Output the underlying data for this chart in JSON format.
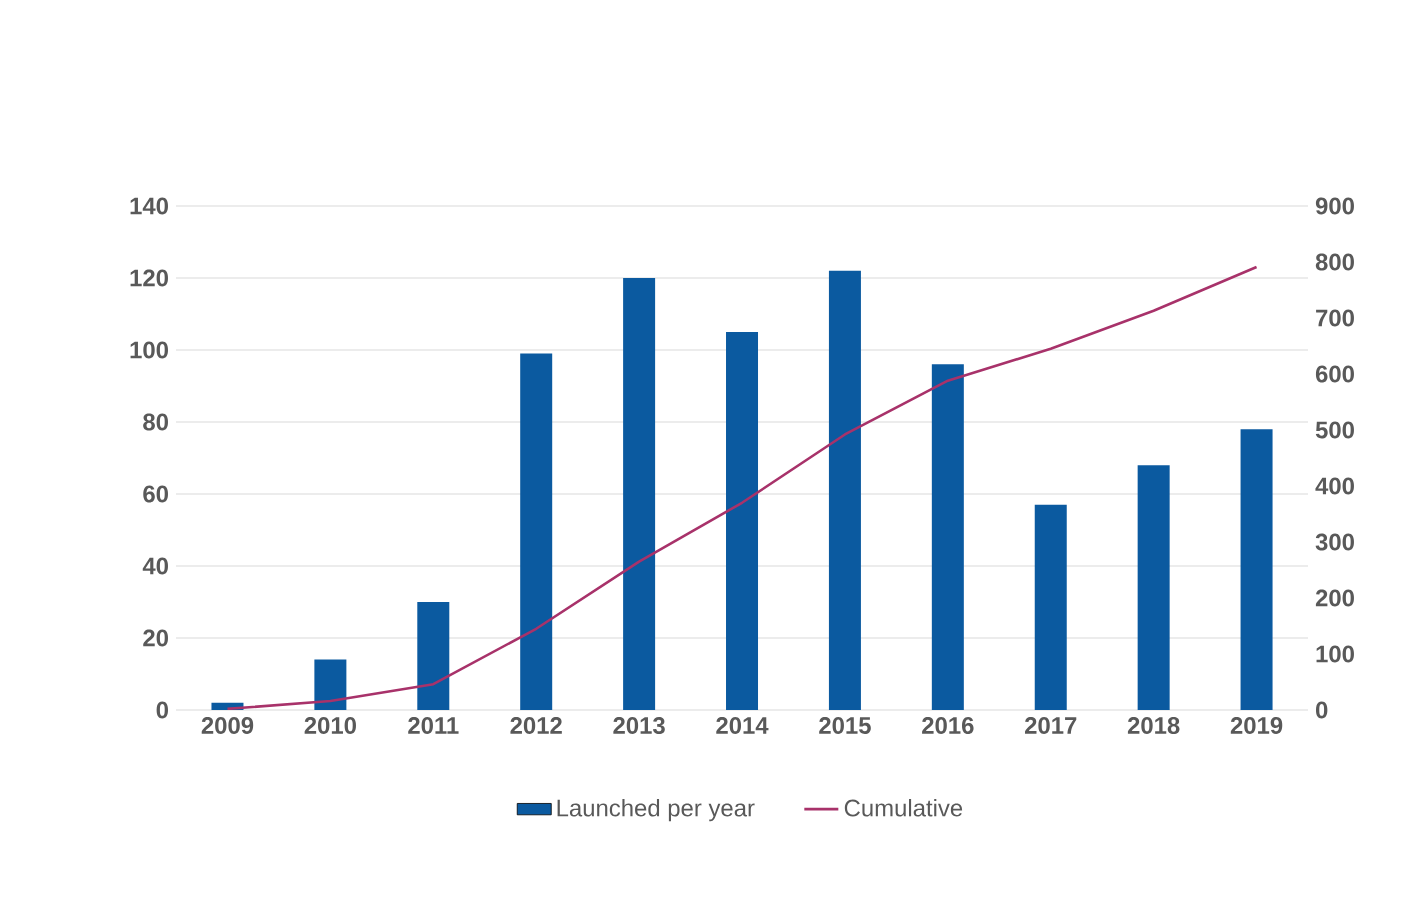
{
  "chart_data": {
    "type": "bar",
    "categories": [
      "2009",
      "2010",
      "2011",
      "2012",
      "2013",
      "2014",
      "2015",
      "2016",
      "2017",
      "2018",
      "2019"
    ],
    "series": [
      {
        "name": "Launched per year",
        "color": "#0b5aa0",
        "values": [
          2,
          14,
          30,
          99,
          120,
          105,
          122,
          96,
          57,
          68,
          78
        ]
      },
      {
        "name": "Cumulative",
        "color": "#a8326a",
        "type": "line",
        "axis": "y2",
        "values": [
          2,
          16,
          46,
          145,
          265,
          370,
          492,
          588,
          645,
          713,
          791
        ]
      }
    ],
    "ylim": [
      0,
      140
    ],
    "yticks": [
      0,
      20,
      40,
      60,
      80,
      100,
      120,
      140
    ],
    "y2lim": [
      0,
      900
    ],
    "y2ticks": [
      0,
      100,
      200,
      300,
      400,
      500,
      600,
      700,
      800,
      900
    ],
    "grid": "y",
    "legend": "bottom"
  }
}
